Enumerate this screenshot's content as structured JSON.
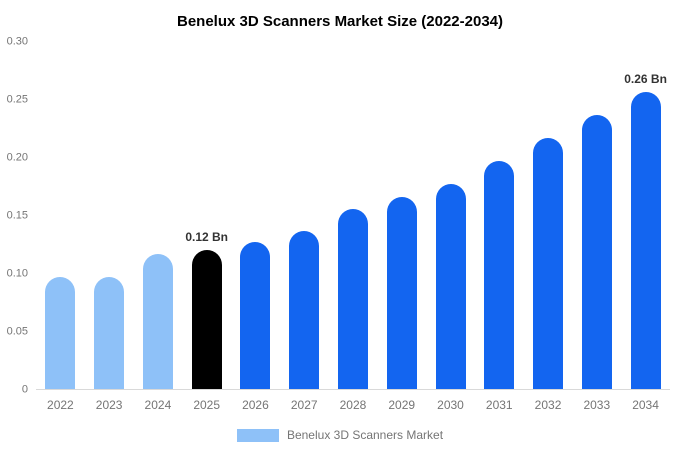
{
  "title": "Benelux 3D Scanners Market Size (2022-2034)",
  "colors": {
    "light": "#8ec1f8",
    "blue": "#1365f0",
    "black": "#000000",
    "axis_text": "#757575",
    "annotation": "#333333"
  },
  "legend": {
    "label": "Benelux 3D Scanners Market",
    "swatch_color": "#8ec1f8"
  },
  "chart_data": {
    "type": "bar",
    "title": "Benelux 3D Scanners Market Size (2022-2034)",
    "unit": "Bn",
    "categories": [
      "2022",
      "2023",
      "2024",
      "2025",
      "2026",
      "2027",
      "2028",
      "2029",
      "2030",
      "2031",
      "2032",
      "2033",
      "2034"
    ],
    "values": [
      0.097,
      0.097,
      0.117,
      0.12,
      0.127,
      0.137,
      0.156,
      0.166,
      0.177,
      0.197,
      0.217,
      0.237,
      0.257
    ],
    "bar_colors": [
      "light",
      "light",
      "light",
      "black",
      "blue",
      "blue",
      "blue",
      "blue",
      "blue",
      "blue",
      "blue",
      "blue",
      "blue"
    ],
    "annotations": [
      {
        "index": 3,
        "text": "0.12 Bn"
      },
      {
        "index": 12,
        "text": "0.26 Bn"
      }
    ],
    "xlabel": "",
    "ylabel": "",
    "ylim": [
      0,
      0.3
    ],
    "yticks": [
      0,
      0.05,
      0.1,
      0.15,
      0.2,
      0.25,
      0.3
    ],
    "ytick_labels": [
      "0",
      "0.05",
      "0.10",
      "0.15",
      "0.20",
      "0.25",
      "0.30"
    ],
    "grid": false,
    "legend_position": "bottom",
    "legend_entries": [
      "Benelux 3D Scanners Market"
    ]
  }
}
